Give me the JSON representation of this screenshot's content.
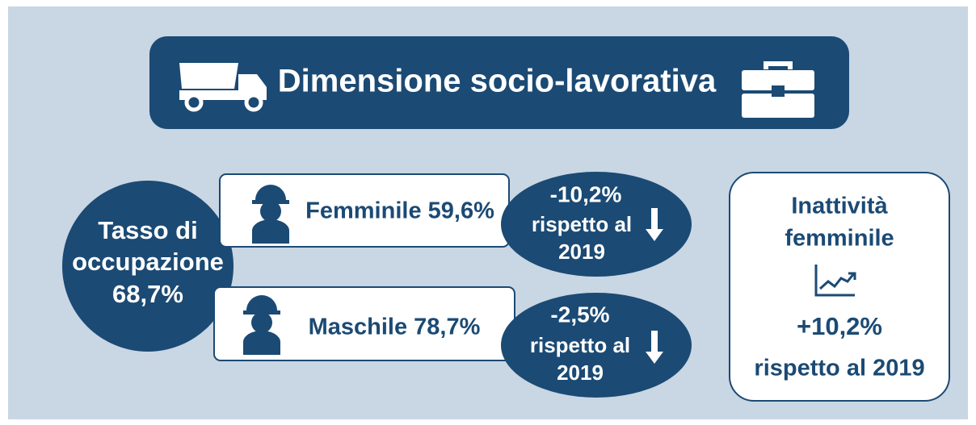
{
  "header": {
    "title": "Dimensione socio-lavorativa"
  },
  "employment_rate": {
    "label_lines": [
      "Tasso di",
      "occupazione"
    ],
    "value": "68,7%"
  },
  "groups": [
    {
      "label": "Femminile 59,6%",
      "change": "-10,2%",
      "change_note_lines": [
        "rispetto al",
        "2019"
      ]
    },
    {
      "label": "Maschile 78,7%",
      "change": "-2,5%",
      "change_note_lines": [
        "rispetto al",
        "2019"
      ]
    }
  ],
  "inactivity": {
    "label_lines": [
      "Inattività",
      "femminile"
    ],
    "change": "+10,2%",
    "change_note": "rispetto al 2019"
  }
}
